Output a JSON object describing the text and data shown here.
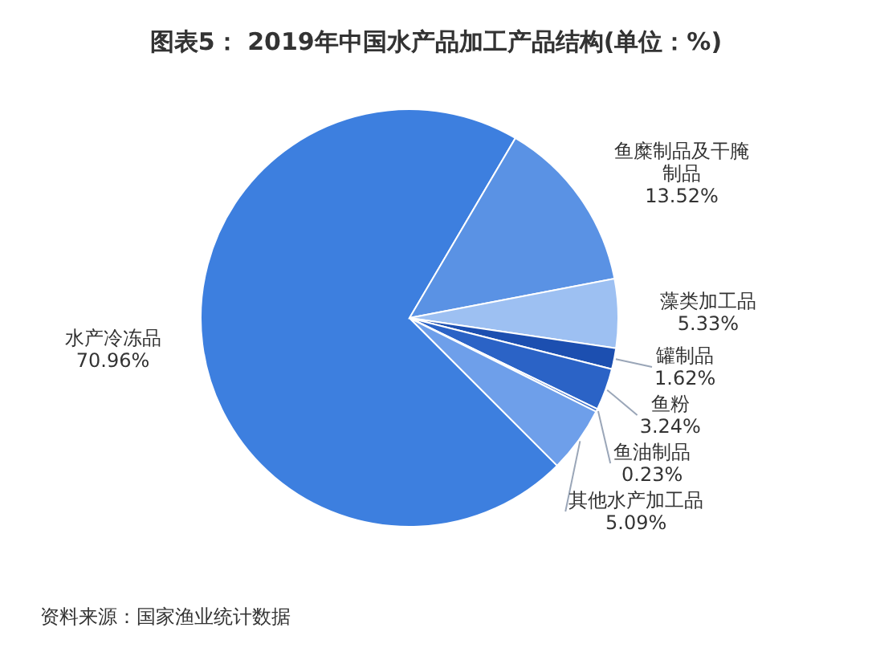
{
  "chart_data": {
    "type": "pie",
    "title": "图表5： 2019年中国水产品加工产品结构(单位：%)",
    "categories": [
      "水产冷冻品",
      "鱼糜制品及干腌制品",
      "藻类加工品",
      "罐制品",
      "鱼粉",
      "鱼油制品",
      "其他水产加工品"
    ],
    "values": [
      70.96,
      13.52,
      5.33,
      1.62,
      3.24,
      0.23,
      5.09
    ],
    "colors": [
      "#3d7fdf",
      "#5a92e4",
      "#9dc0f2",
      "#1c4fb0",
      "#2b63c6",
      "#3a6fce",
      "#6e9fea"
    ],
    "value_labels": [
      "70.96%",
      "13.52%",
      "5.33%",
      "1.62%",
      "3.24%",
      "0.23%",
      "5.09%"
    ],
    "annotations": [
      "资料来源：国家渔业统计数据"
    ]
  }
}
